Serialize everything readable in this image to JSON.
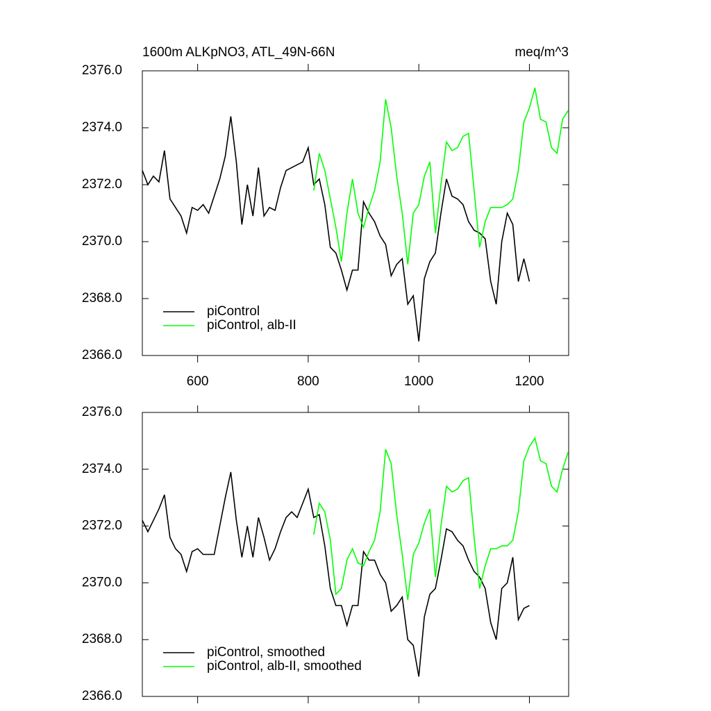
{
  "chart_data": [
    {
      "type": "line",
      "title": "1600m ALKpNO3, ATL_49N-66N",
      "units": "meq/m^3",
      "xlim": [
        500,
        1271
      ],
      "xticks": [
        600,
        800,
        1000,
        1200
      ],
      "xticklabels": true,
      "ylim": [
        2366,
        2376
      ],
      "yticks": [
        {
          "value": 2366,
          "label": "2366.0"
        },
        {
          "value": 2368,
          "label": "2368.0"
        },
        {
          "value": 2370,
          "label": "2370.0"
        },
        {
          "value": 2372,
          "label": "2372.0"
        },
        {
          "value": 2374,
          "label": "2374.0"
        },
        {
          "value": 2376,
          "label": "2376.0"
        }
      ],
      "legend": "lower left",
      "series": [
        {
          "name": "piControl",
          "color": "#000000",
          "x": [
            500,
            510,
            520,
            530,
            540,
            550,
            560,
            570,
            580,
            590,
            600,
            610,
            620,
            630,
            640,
            650,
            660,
            670,
            680,
            690,
            700,
            710,
            720,
            730,
            740,
            750,
            760,
            770,
            780,
            790,
            800,
            810,
            820,
            830,
            840,
            850,
            860,
            870,
            880,
            890,
            900,
            910,
            920,
            930,
            940,
            950,
            960,
            970,
            980,
            990,
            1000,
            1010,
            1020,
            1030,
            1040,
            1050,
            1060,
            1070,
            1080,
            1090,
            1100,
            1110,
            1120,
            1130,
            1140,
            1150,
            1160,
            1170,
            1180,
            1190,
            1200
          ],
          "values": [
            2372.5,
            2372.0,
            2372.3,
            2372.1,
            2373.2,
            2371.5,
            2371.2,
            2370.9,
            2370.3,
            2371.2,
            2371.1,
            2371.3,
            2371.0,
            2371.6,
            2372.2,
            2373.0,
            2374.4,
            2372.8,
            2370.6,
            2372.0,
            2370.9,
            2372.6,
            2370.9,
            2371.2,
            2371.1,
            2371.9,
            2372.5,
            2372.6,
            2372.7,
            2372.8,
            2373.3,
            2372.0,
            2372.2,
            2371.3,
            2369.8,
            2369.6,
            2369.0,
            2368.3,
            2369.0,
            2369.0,
            2371.4,
            2371.0,
            2370.7,
            2370.2,
            2369.9,
            2368.8,
            2369.2,
            2369.4,
            2367.8,
            2368.1,
            2366.5,
            2368.7,
            2369.3,
            2369.6,
            2371.0,
            2372.2,
            2371.6,
            2371.5,
            2371.3,
            2370.7,
            2370.4,
            2370.3,
            2370.1,
            2368.6,
            2367.8,
            2370.0,
            2371.0,
            2370.6,
            2368.6,
            2369.4,
            2368.6
          ]
        },
        {
          "name": "piControl, alb-II",
          "color": "#00ff00",
          "x": [
            810,
            820,
            830,
            840,
            850,
            860,
            870,
            880,
            890,
            900,
            910,
            920,
            930,
            940,
            950,
            960,
            970,
            980,
            990,
            1000,
            1010,
            1020,
            1030,
            1040,
            1050,
            1060,
            1070,
            1080,
            1090,
            1100,
            1110,
            1120,
            1130,
            1140,
            1150,
            1160,
            1170,
            1180,
            1190,
            1200,
            1210,
            1220,
            1230,
            1240,
            1250,
            1260,
            1270
          ],
          "values": [
            2371.8,
            2373.1,
            2372.5,
            2371.5,
            2370.5,
            2369.3,
            2371.0,
            2372.2,
            2371.0,
            2370.5,
            2371.2,
            2371.8,
            2372.8,
            2375.0,
            2374.0,
            2372.3,
            2371.0,
            2369.2,
            2371.0,
            2371.3,
            2372.3,
            2372.8,
            2370.3,
            2372.0,
            2373.5,
            2373.2,
            2373.3,
            2373.7,
            2373.8,
            2371.8,
            2369.8,
            2370.7,
            2371.2,
            2371.2,
            2371.2,
            2371.3,
            2371.5,
            2372.5,
            2374.2,
            2374.7,
            2375.4,
            2374.3,
            2374.2,
            2373.3,
            2373.1,
            2374.3,
            2374.6
          ]
        }
      ]
    },
    {
      "type": "line",
      "xlim": [
        500,
        1271
      ],
      "xticks": [
        600,
        800,
        1000,
        1200
      ],
      "xticklabels": false,
      "ylim": [
        2366,
        2376
      ],
      "yticks": [
        {
          "value": 2366,
          "label": "2366.0"
        },
        {
          "value": 2368,
          "label": "2368.0"
        },
        {
          "value": 2370,
          "label": "2370.0"
        },
        {
          "value": 2372,
          "label": "2372.0"
        },
        {
          "value": 2374,
          "label": "2374.0"
        },
        {
          "value": 2376,
          "label": "2376.0"
        }
      ],
      "legend": "lower left",
      "series": [
        {
          "name": "piControl, smoothed",
          "color": "#000000",
          "x": [
            500,
            510,
            520,
            530,
            540,
            550,
            560,
            570,
            580,
            590,
            600,
            610,
            620,
            630,
            640,
            650,
            660,
            670,
            680,
            690,
            700,
            710,
            720,
            730,
            740,
            750,
            760,
            770,
            780,
            790,
            800,
            810,
            820,
            830,
            840,
            850,
            860,
            870,
            880,
            890,
            900,
            910,
            920,
            930,
            940,
            950,
            960,
            970,
            980,
            990,
            1000,
            1010,
            1020,
            1030,
            1040,
            1050,
            1060,
            1070,
            1080,
            1090,
            1100,
            1110,
            1120,
            1130,
            1140,
            1150,
            1160,
            1170,
            1180,
            1190,
            1200
          ],
          "values": [
            2372.2,
            2371.8,
            2372.2,
            2372.6,
            2373.1,
            2371.6,
            2371.2,
            2371.0,
            2370.4,
            2371.1,
            2371.2,
            2371.0,
            2371.0,
            2371.0,
            2372.0,
            2373.0,
            2373.9,
            2372.2,
            2370.9,
            2372.0,
            2370.9,
            2372.3,
            2371.6,
            2370.8,
            2371.2,
            2371.8,
            2372.3,
            2372.5,
            2372.3,
            2372.8,
            2373.3,
            2372.3,
            2372.4,
            2371.3,
            2369.8,
            2369.2,
            2369.2,
            2368.5,
            2369.2,
            2369.2,
            2371.1,
            2370.8,
            2370.8,
            2370.3,
            2370.0,
            2369.0,
            2369.2,
            2369.5,
            2368.0,
            2367.8,
            2366.7,
            2368.8,
            2369.6,
            2369.8,
            2370.8,
            2371.9,
            2371.8,
            2371.5,
            2371.3,
            2370.8,
            2370.4,
            2370.2,
            2369.8,
            2368.6,
            2368.0,
            2369.8,
            2370.0,
            2370.9,
            2368.7,
            2369.1,
            2369.2
          ]
        },
        {
          "name": "piControl, alb-II, smoothed",
          "color": "#00ff00",
          "x": [
            810,
            820,
            830,
            840,
            850,
            860,
            870,
            880,
            890,
            900,
            910,
            920,
            930,
            940,
            950,
            960,
            970,
            980,
            990,
            1000,
            1010,
            1020,
            1030,
            1040,
            1050,
            1060,
            1070,
            1080,
            1090,
            1100,
            1110,
            1120,
            1130,
            1140,
            1150,
            1160,
            1170,
            1180,
            1190,
            1200,
            1210,
            1220,
            1230,
            1240,
            1250,
            1260,
            1270
          ],
          "values": [
            2371.7,
            2372.8,
            2372.5,
            2371.5,
            2369.6,
            2369.8,
            2370.8,
            2371.2,
            2370.7,
            2370.6,
            2371.1,
            2371.5,
            2372.5,
            2374.7,
            2374.2,
            2372.4,
            2371.0,
            2369.4,
            2371.0,
            2371.4,
            2372.1,
            2372.6,
            2370.2,
            2372.0,
            2373.4,
            2373.2,
            2373.3,
            2373.6,
            2373.7,
            2371.6,
            2369.8,
            2370.6,
            2371.2,
            2371.2,
            2371.3,
            2371.3,
            2371.5,
            2372.5,
            2374.3,
            2374.8,
            2375.1,
            2374.3,
            2374.2,
            2373.4,
            2373.2,
            2374.0,
            2374.6
          ]
        }
      ]
    }
  ]
}
